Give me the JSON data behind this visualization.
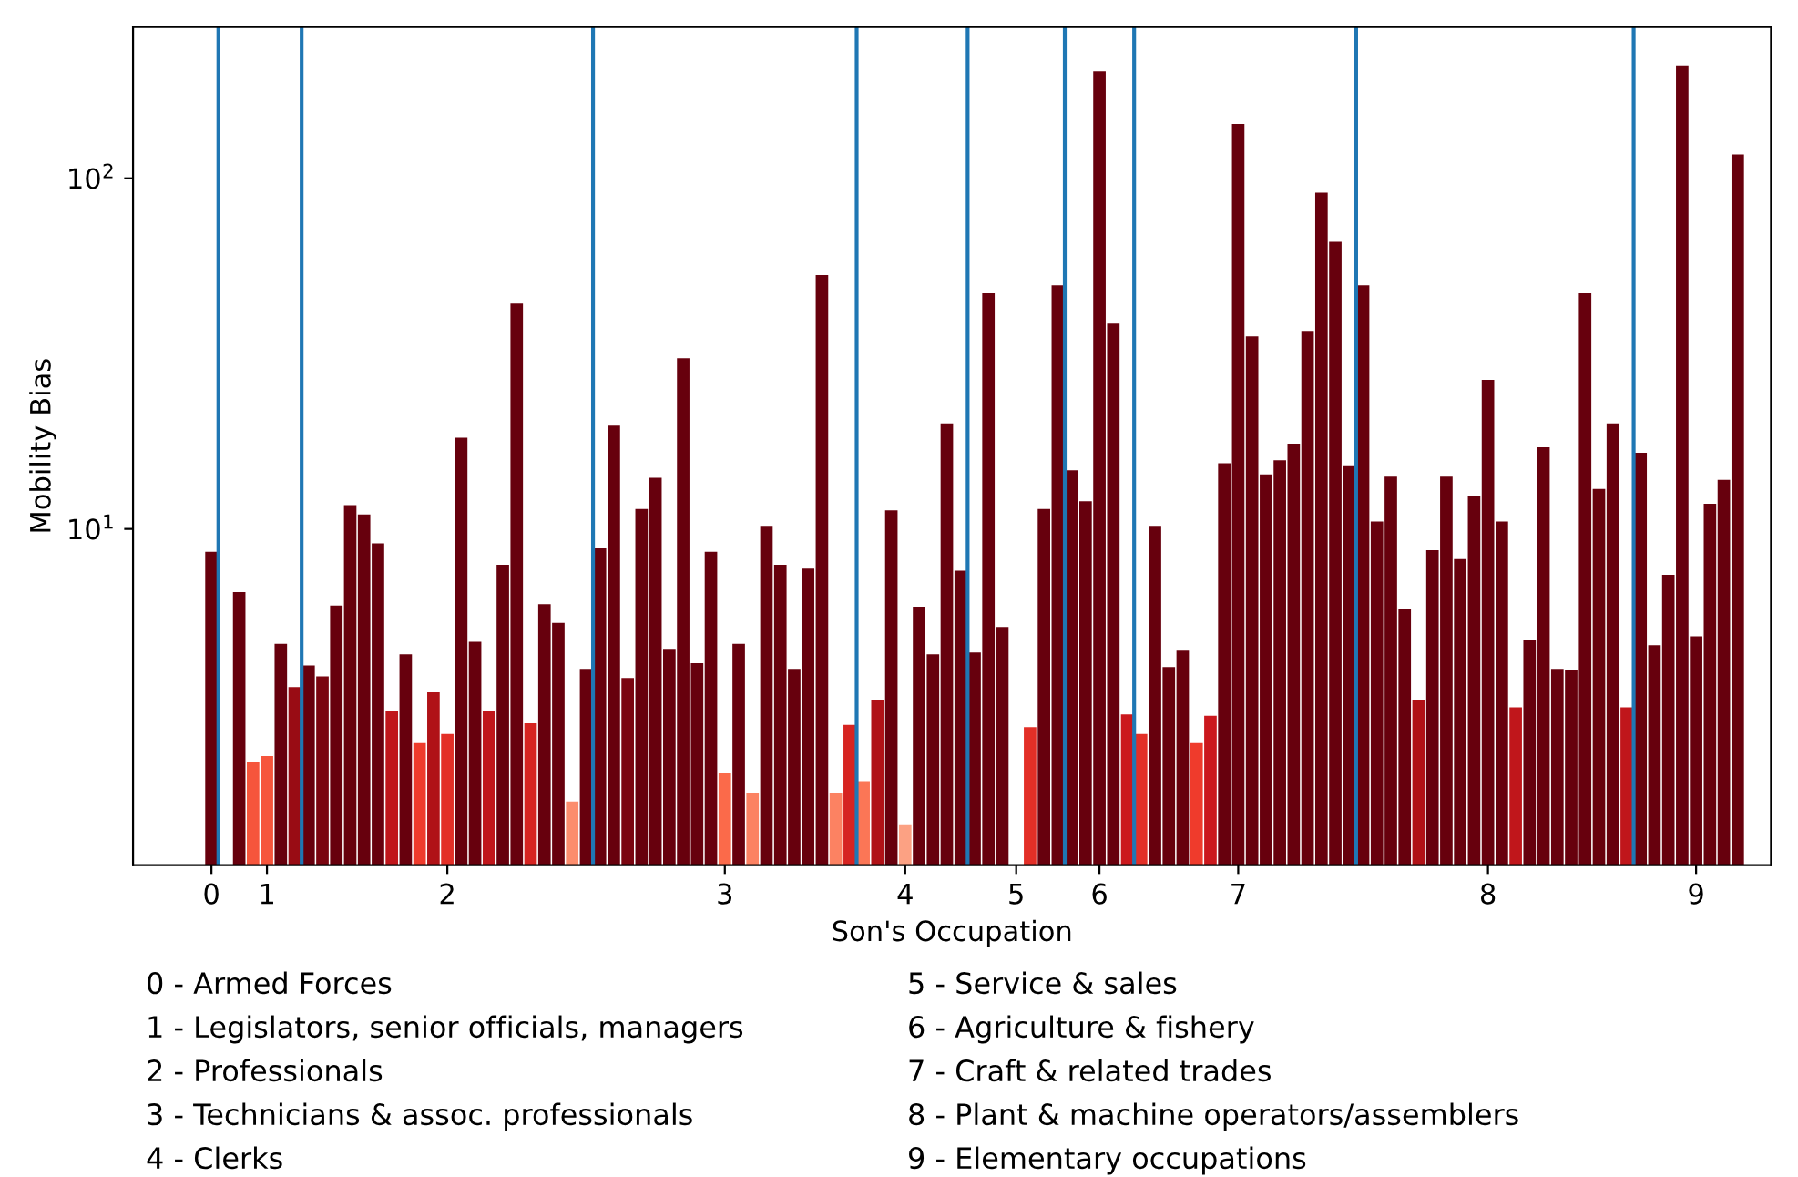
{
  "chart_data": {
    "type": "bar",
    "xlabel": "Son's Occupation",
    "ylabel": "Mobility Bias",
    "log": "y",
    "categories": [
      "0",
      null,
      null,
      null,
      "1",
      null,
      null,
      null,
      null,
      null,
      null,
      null,
      null,
      null,
      null,
      null,
      null,
      "2",
      null,
      null,
      null,
      null,
      null,
      null,
      null,
      null,
      null,
      null,
      null,
      null,
      null,
      null,
      null,
      null,
      null,
      null,
      null,
      "3",
      null,
      null,
      null,
      null,
      null,
      null,
      null,
      null,
      null,
      null,
      null,
      null,
      "4",
      null,
      null,
      null,
      null,
      null,
      null,
      null,
      "5",
      null,
      null,
      null,
      null,
      null,
      "6",
      null,
      null,
      null,
      null,
      null,
      null,
      null,
      null,
      null,
      "7",
      null,
      null,
      null,
      null,
      null,
      null,
      null,
      null,
      null,
      null,
      null,
      null,
      null,
      null,
      null,
      null,
      null,
      "8",
      null,
      null,
      null,
      null,
      null,
      null,
      null,
      null,
      null,
      null,
      null,
      null,
      null,
      null,
      "9",
      null,
      null,
      null,
      null,
      null
    ],
    "values": [
      8.6,
      null,
      6.6,
      2.17,
      2.25,
      4.7,
      3.54,
      4.08,
      3.8,
      6.05,
      11.7,
      11.0,
      9.1,
      3.03,
      4.39,
      2.45,
      3.42,
      2.6,
      18.2,
      4.77,
      3.03,
      7.9,
      43.9,
      2.79,
      6.1,
      5.4,
      1.67,
      3.99,
      8.8,
      19.7,
      3.76,
      11.4,
      14.0,
      4.55,
      30.7,
      4.14,
      8.6,
      2.02,
      4.7,
      1.77,
      10.2,
      7.9,
      3.99,
      7.7,
      53,
      1.77,
      2.76,
      1.91,
      3.26,
      11.3,
      1.43,
      6.0,
      4.39,
      20.0,
      7.6,
      4.44,
      47,
      5.25,
      null,
      2.72,
      11.4,
      49.5,
      14.7,
      12.0,
      202,
      38.5,
      2.96,
      2.6,
      10.2,
      4.04,
      4.5,
      2.45,
      2.93,
      15.4,
      143,
      35.4,
      14.3,
      15.7,
      17.5,
      36.7,
      91,
      65.9,
      15.2,
      49.5,
      10.5,
      14.1,
      5.9,
      3.26,
      8.7,
      14.1,
      8.2,
      12.4,
      26.6,
      10.5,
      3.1,
      4.83,
      17.1,
      3.99,
      3.95,
      47,
      13.0,
      20.0,
      3.1,
      16.5,
      4.66,
      7.4,
      210,
      4.94,
      11.8,
      13.8,
      117,
      null,
      null
    ],
    "colors": [
      "#67000d",
      "#67000d",
      "#67000d",
      "#f6553c",
      "#f6553c",
      "#67000d",
      "#990c14",
      "#67000d",
      "#7a0510",
      "#67000d",
      "#67000d",
      "#67000d",
      "#67000d",
      "#c0161b",
      "#67000d",
      "#ef3b2c",
      "#b01217",
      "#e32f27",
      "#67000d",
      "#67000d",
      "#c0161b",
      "#67000d",
      "#67000d",
      "#d62421",
      "#67000d",
      "#67000d",
      "#fc8d6d",
      "#67000d",
      "#67000d",
      "#67000d",
      "#7a0510",
      "#67000d",
      "#67000d",
      "#67000d",
      "#67000d",
      "#67000d",
      "#67000d",
      "#fb6a4a",
      "#67000d",
      "#fc8262",
      "#67000d",
      "#67000d",
      "#67000d",
      "#67000d",
      "#67000d",
      "#fc8262",
      "#d62421",
      "#fb7656",
      "#b01217",
      "#67000d",
      "#fca183",
      "#67000d",
      "#67000d",
      "#67000d",
      "#67000d",
      "#67000d",
      "#67000d",
      "#67000d",
      "#67000d",
      "#e32f27",
      "#67000d",
      "#67000d",
      "#67000d",
      "#67000d",
      "#67000d",
      "#67000d",
      "#cb181d",
      "#e32f27",
      "#67000d",
      "#67000d",
      "#67000d",
      "#ef3b2c",
      "#cb181d",
      "#67000d",
      "#67000d",
      "#67000d",
      "#67000d",
      "#67000d",
      "#67000d",
      "#67000d",
      "#67000d",
      "#67000d",
      "#67000d",
      "#67000d",
      "#67000d",
      "#67000d",
      "#67000d",
      "#b01217",
      "#67000d",
      "#67000d",
      "#67000d",
      "#67000d",
      "#67000d",
      "#67000d",
      "#c0161b",
      "#67000d",
      "#67000d",
      "#67000d",
      "#67000d",
      "#67000d",
      "#67000d",
      "#67000d",
      "#c0161b",
      "#67000d",
      "#67000d",
      "#67000d",
      "#67000d",
      "#67000d",
      "#67000d",
      "#67000d",
      "#67000d",
      "#67000d",
      "#67000d"
    ],
    "ylim": [
      1.1,
      270
    ],
    "yticks": [
      {
        "value": 10,
        "label": "10$^{1}$"
      },
      {
        "value": 100,
        "label": "10$^{2}$"
      }
    ],
    "grid": false,
    "legend": false,
    "annotations": [
      "0 - Armed Forces",
      "1 - Legislators, senior officials, managers",
      "2 - Professionals",
      "3 - Technicians & assoc. professionals",
      "4 - Clerks",
      "5 - Service & sales",
      "6 - Agriculture & fishery",
      "7 - Craft & related trades",
      "8 - Plant & machine operators/assemblers",
      "9 - Elementary occupations"
    ]
  }
}
